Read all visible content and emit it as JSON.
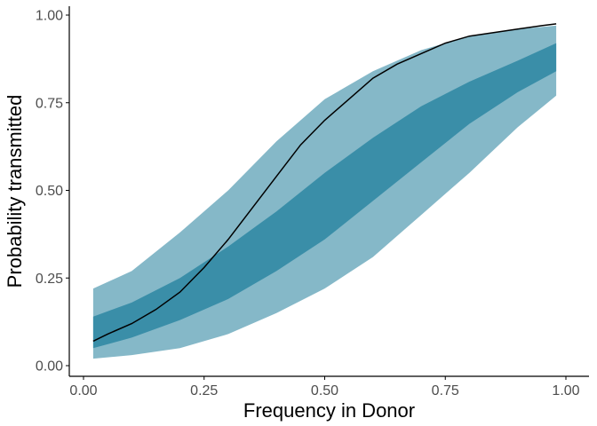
{
  "chart_data": {
    "type": "area",
    "xlabel": "Frequency in Donor",
    "ylabel": "Probability transmitted",
    "xlim": [
      0,
      1
    ],
    "ylim": [
      0,
      1
    ],
    "x_ticks": [
      "0.00",
      "0.25",
      "0.50",
      "0.75",
      "1.00"
    ],
    "y_ticks": [
      "0.00",
      "0.25",
      "0.50",
      "0.75",
      "1.00"
    ],
    "grid": false,
    "legend": "none",
    "colors": {
      "outer_band": "#85b8c8",
      "inner_band": "#3a8ea8",
      "line": "#000000",
      "axis": "#000000",
      "tick_text": "#4d4d4d"
    },
    "x": [
      0.02,
      0.1,
      0.2,
      0.3,
      0.4,
      0.5,
      0.6,
      0.7,
      0.8,
      0.9,
      0.98
    ],
    "outer_band": {
      "lower": [
        0.02,
        0.03,
        0.05,
        0.09,
        0.15,
        0.22,
        0.31,
        0.43,
        0.55,
        0.68,
        0.77
      ],
      "upper": [
        0.22,
        0.27,
        0.38,
        0.5,
        0.64,
        0.76,
        0.84,
        0.9,
        0.94,
        0.96,
        0.97
      ]
    },
    "inner_band": {
      "lower": [
        0.05,
        0.08,
        0.13,
        0.19,
        0.27,
        0.36,
        0.47,
        0.58,
        0.69,
        0.78,
        0.84
      ],
      "upper": [
        0.14,
        0.18,
        0.25,
        0.34,
        0.44,
        0.55,
        0.65,
        0.74,
        0.81,
        0.87,
        0.92
      ]
    },
    "line": {
      "x": [
        0.02,
        0.05,
        0.1,
        0.15,
        0.2,
        0.25,
        0.3,
        0.35,
        0.4,
        0.45,
        0.5,
        0.55,
        0.6,
        0.65,
        0.7,
        0.75,
        0.8,
        0.85,
        0.9,
        0.95,
        0.98
      ],
      "y": [
        0.07,
        0.09,
        0.12,
        0.16,
        0.21,
        0.28,
        0.36,
        0.45,
        0.54,
        0.63,
        0.7,
        0.76,
        0.82,
        0.86,
        0.89,
        0.92,
        0.94,
        0.95,
        0.96,
        0.97,
        0.975
      ]
    }
  }
}
